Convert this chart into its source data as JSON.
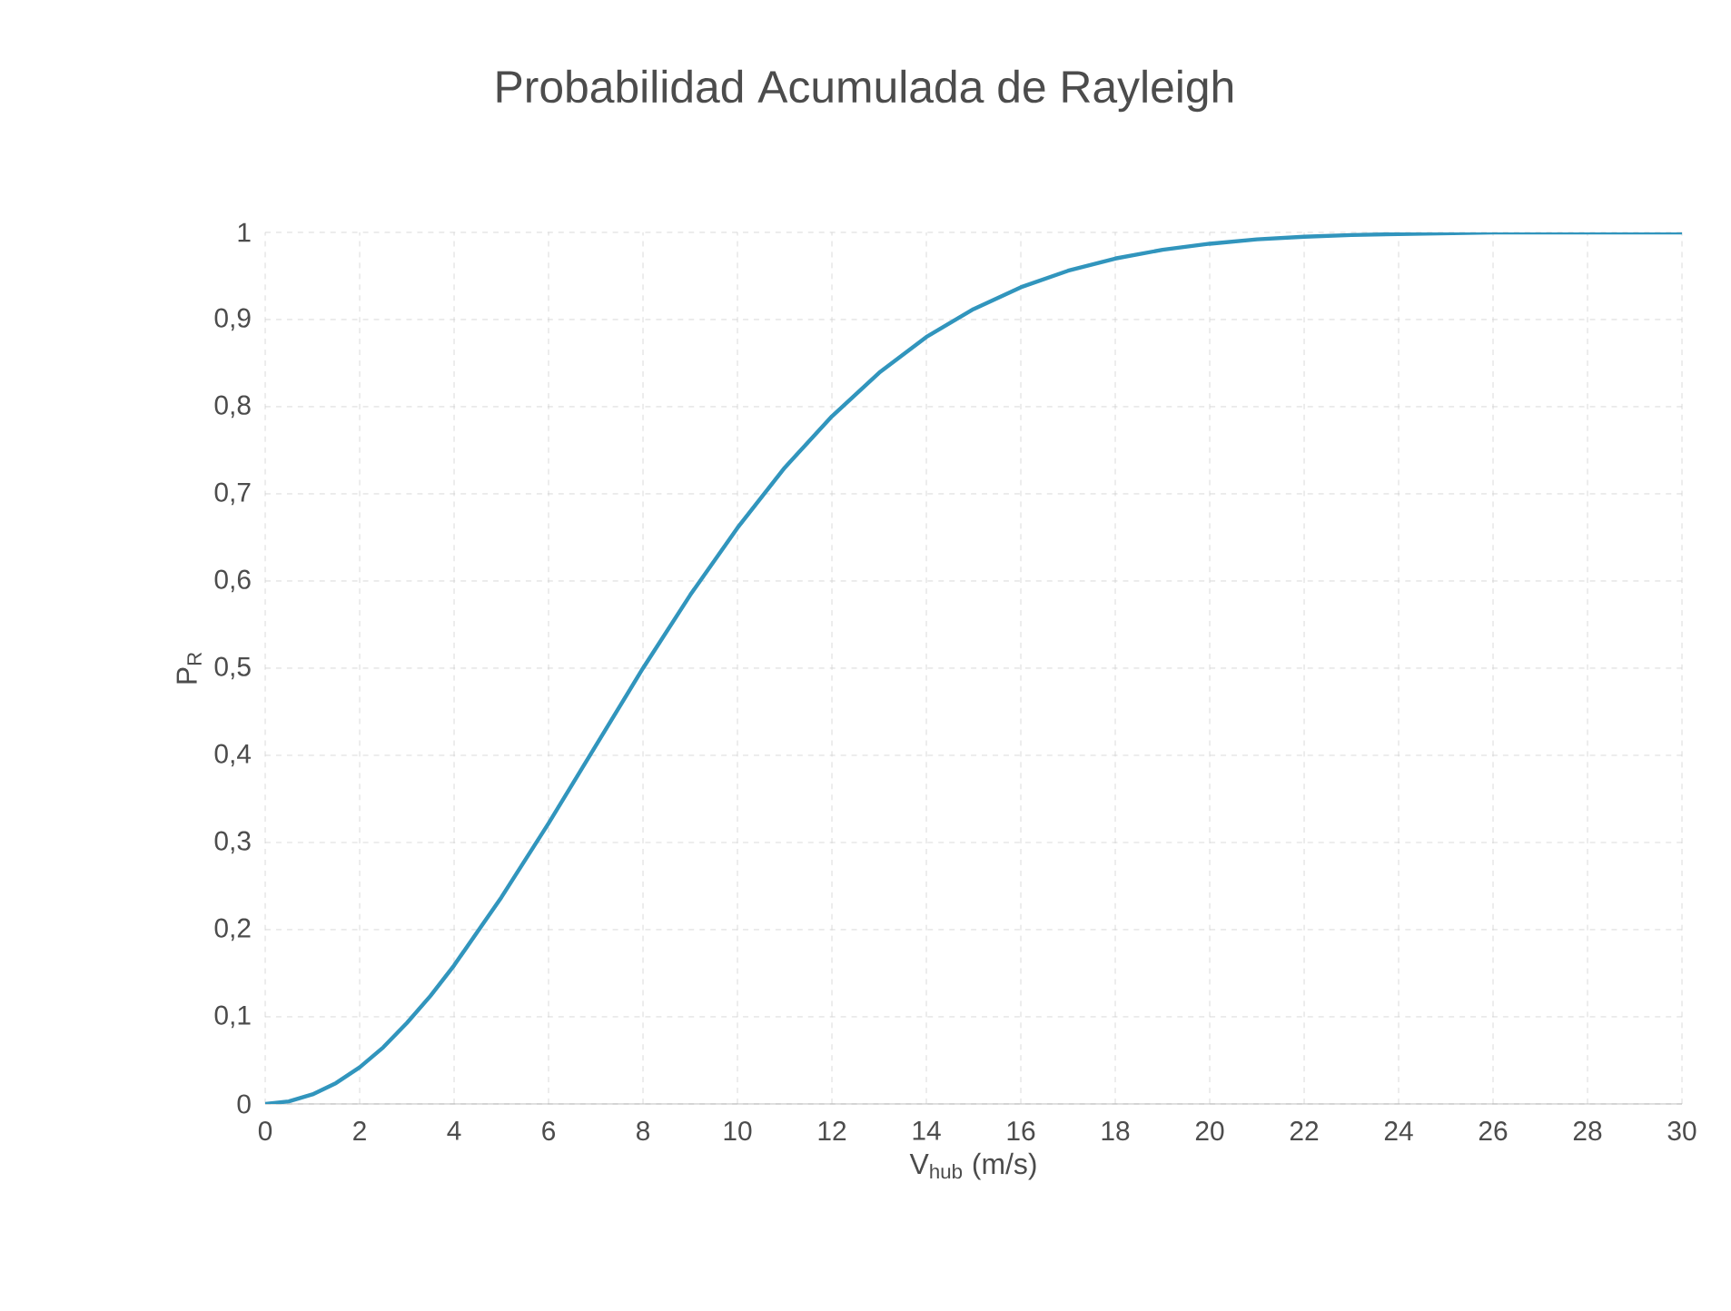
{
  "chart_data": {
    "type": "line",
    "title": "Probabilidad Acumulada de Rayleigh",
    "xlabel": "V$_{hub}$ (m/s)",
    "ylabel": "P$_{R}$",
    "x": [
      0,
      0.5,
      1,
      1.5,
      2,
      2.5,
      3,
      3.5,
      4,
      5,
      6,
      7,
      8,
      9,
      10,
      11,
      12,
      13,
      14,
      15,
      16,
      17,
      18,
      19,
      20,
      21,
      22,
      23,
      24,
      26,
      28,
      30
    ],
    "series": [
      {
        "color": "#3195bd",
        "values": [
          0,
          0.003,
          0.011,
          0.024,
          0.042,
          0.065,
          0.093,
          0.124,
          0.159,
          0.237,
          0.322,
          0.411,
          0.5,
          0.584,
          0.661,
          0.73,
          0.789,
          0.839,
          0.88,
          0.912,
          0.937,
          0.956,
          0.97,
          0.98,
          0.987,
          0.992,
          0.995,
          0.997,
          0.998,
          1.0,
          1.0,
          1.0
        ]
      }
    ],
    "xlim": [
      0,
      30
    ],
    "xticks": [
      0,
      2,
      4,
      6,
      8,
      10,
      12,
      14,
      16,
      18,
      20,
      22,
      24,
      26,
      28,
      30
    ],
    "ylim": [
      0,
      1
    ],
    "yticks": [
      0,
      {
        "value": 0.1,
        "label": "0,1"
      },
      {
        "value": 0.2,
        "label": "0,2"
      },
      {
        "value": 0.3,
        "label": "0,3"
      },
      {
        "value": 0.4,
        "label": "0,4"
      },
      {
        "value": 0.5,
        "label": "0,5"
      },
      {
        "value": 0.6,
        "label": "0,6"
      },
      {
        "value": 0.7,
        "label": "0,7"
      },
      {
        "value": 0.8,
        "label": "0,8"
      },
      {
        "value": 0.9,
        "label": "0,9"
      },
      1
    ],
    "grid": true,
    "marker": "none",
    "line_style": "solid"
  }
}
